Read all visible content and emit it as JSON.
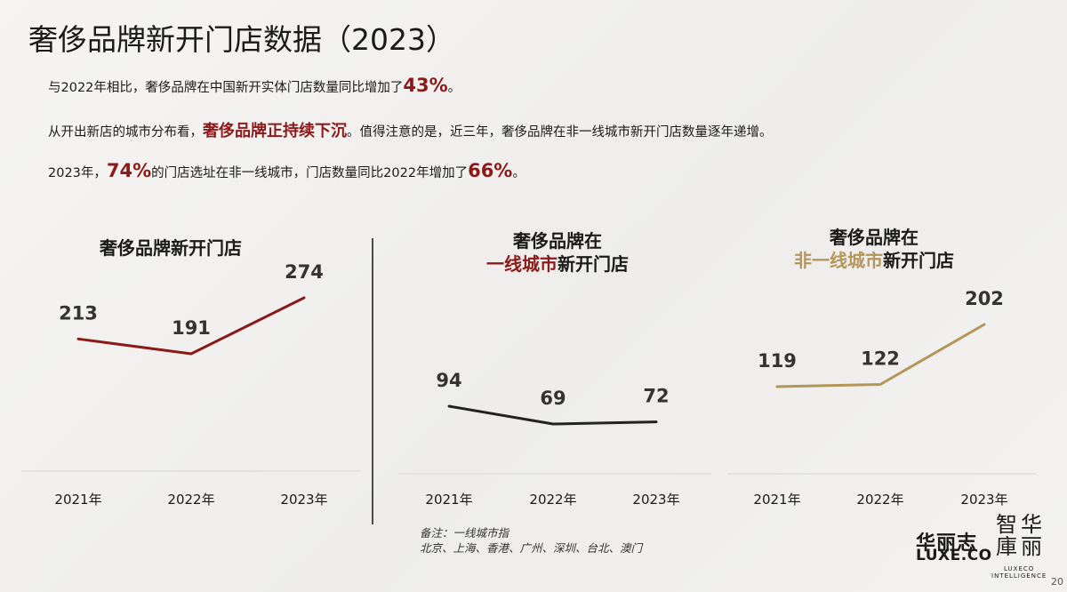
{
  "page_title": "奢侈品牌新开门店数据（2023）",
  "summary": {
    "line1_pre": "与2022年相比，奢侈品牌在中国新开实体门店数量同比增加了",
    "line1_hl": "43%",
    "line1_post": "。",
    "line2_pre": "从开出新店的城市分布看，",
    "line2_hl": "奢侈品牌正持续下沉",
    "line2_post": "。值得注意的是，近三年，奢侈品牌在非一线城市新开门店数量逐年递增。",
    "line3_pre": "2023年，",
    "line3_hl1": "74%",
    "line3_mid": "的门店选址在非一线城市，门店数量同比2022年增加了",
    "line3_hl2": "66%",
    "line3_post": "。"
  },
  "chart_titles": {
    "total": "奢侈品牌新开门店",
    "tier1_line1": "奢侈品牌在",
    "tier1_line2_hl": "一线城市",
    "tier1_line2_rest": "新开门店",
    "nontier1_line1": "奢侈品牌在",
    "nontier1_line2_hl": "非一线城市",
    "nontier1_line2_rest": "新开门店"
  },
  "note": {
    "line1": "备注：一线城市指",
    "line2": "北京、上海、香港、广州、深圳、台北、澳门"
  },
  "logo": {
    "cn": "华丽志",
    "en": "LUXE.CO",
    "seal": "智华庫丽",
    "seal_sub1": "LUXECO",
    "seal_sub2": "INTELLIGENCE"
  },
  "page_number": "20",
  "colors": {
    "accent_red": "#8b1a1a",
    "gold": "#b4965a",
    "dark": "#222222"
  },
  "chart_data": [
    {
      "type": "line",
      "title": "奢侈品牌新开门店",
      "categories": [
        "2021年",
        "2022年",
        "2023年"
      ],
      "series": [
        {
          "values": [
            213,
            191,
            274
          ],
          "color": "#8b1a1a"
        }
      ],
      "grid": false
    },
    {
      "type": "line",
      "title": "奢侈品牌在一线城市新开门店",
      "categories": [
        "2021年",
        "2022年",
        "2023年"
      ],
      "series": [
        {
          "values": [
            94,
            69,
            72
          ],
          "color": "#222222"
        }
      ],
      "grid": false
    },
    {
      "type": "line",
      "title": "奢侈品牌在非一线城市新开门店",
      "categories": [
        "2021年",
        "2022年",
        "2023年"
      ],
      "series": [
        {
          "values": [
            119,
            122,
            202
          ],
          "color": "#b4965a"
        }
      ],
      "grid": false
    }
  ]
}
